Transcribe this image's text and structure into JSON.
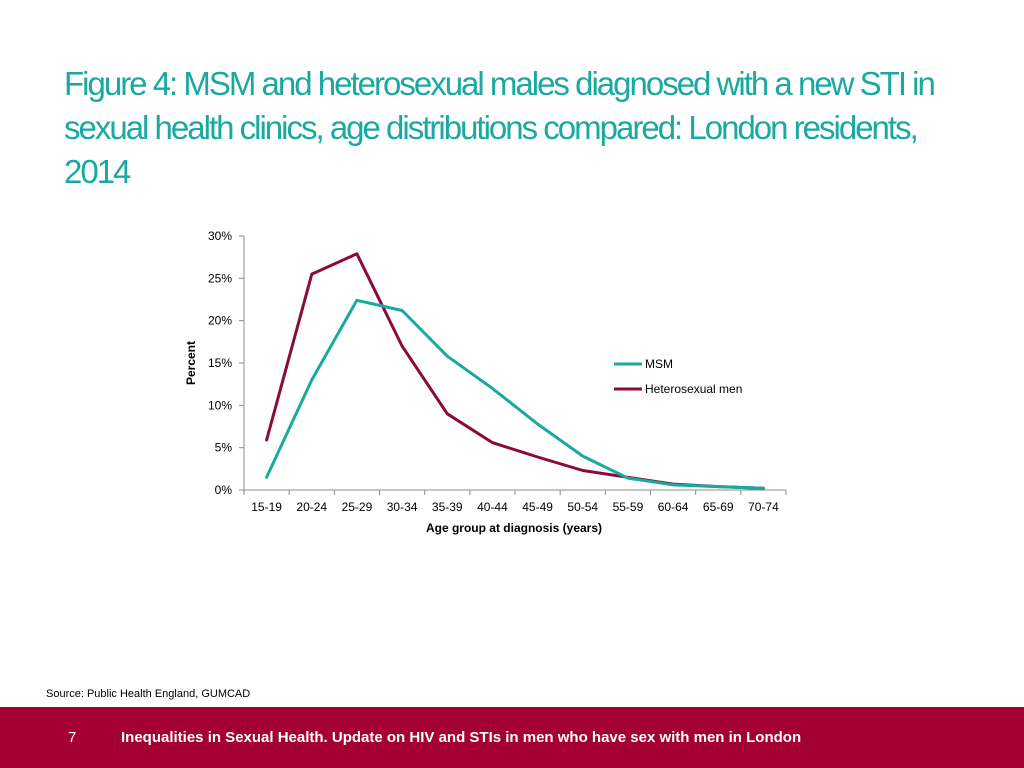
{
  "slide": {
    "title": "Figure 4: MSM and heterosexual males diagnosed with a new STI in sexual health clinics, age distributions compared: London residents, 2014",
    "source": "Source: Public Health England, GUMCAD",
    "page_number": "7",
    "footer_text": "Inequalities in Sexual Health. Update on HIV and STIs in men who have sex with men in London"
  },
  "colors": {
    "title": "#19a9a0",
    "footer_bg": "#a50034",
    "msm": "#19a9a0",
    "hetero": "#8b0a3c"
  },
  "chart_data": {
    "type": "line",
    "xlabel": "Age group at diagnosis (years)",
    "ylabel": "Percent",
    "categories": [
      "15-19",
      "20-24",
      "25-29",
      "30-34",
      "35-39",
      "40-44",
      "45-49",
      "50-54",
      "55-59",
      "60-64",
      "65-69",
      "70-74"
    ],
    "ylim": [
      0,
      30
    ],
    "yticks": [
      0,
      5,
      10,
      15,
      20,
      25,
      30
    ],
    "ytick_labels": [
      "0%",
      "5%",
      "10%",
      "15%",
      "20%",
      "25%",
      "30%"
    ],
    "grid": false,
    "legend_position": "right",
    "series": [
      {
        "name": "MSM",
        "color": "#19a9a0",
        "values": [
          1.5,
          13.0,
          22.4,
          21.2,
          15.8,
          12.0,
          7.8,
          4.0,
          1.4,
          0.6,
          0.4,
          0.2
        ]
      },
      {
        "name": "Heterosexual men",
        "color": "#8b0a3c",
        "values": [
          5.9,
          25.5,
          27.9,
          17.0,
          9.0,
          5.6,
          3.9,
          2.3,
          1.5,
          0.7,
          0.4,
          0.2
        ]
      }
    ]
  }
}
